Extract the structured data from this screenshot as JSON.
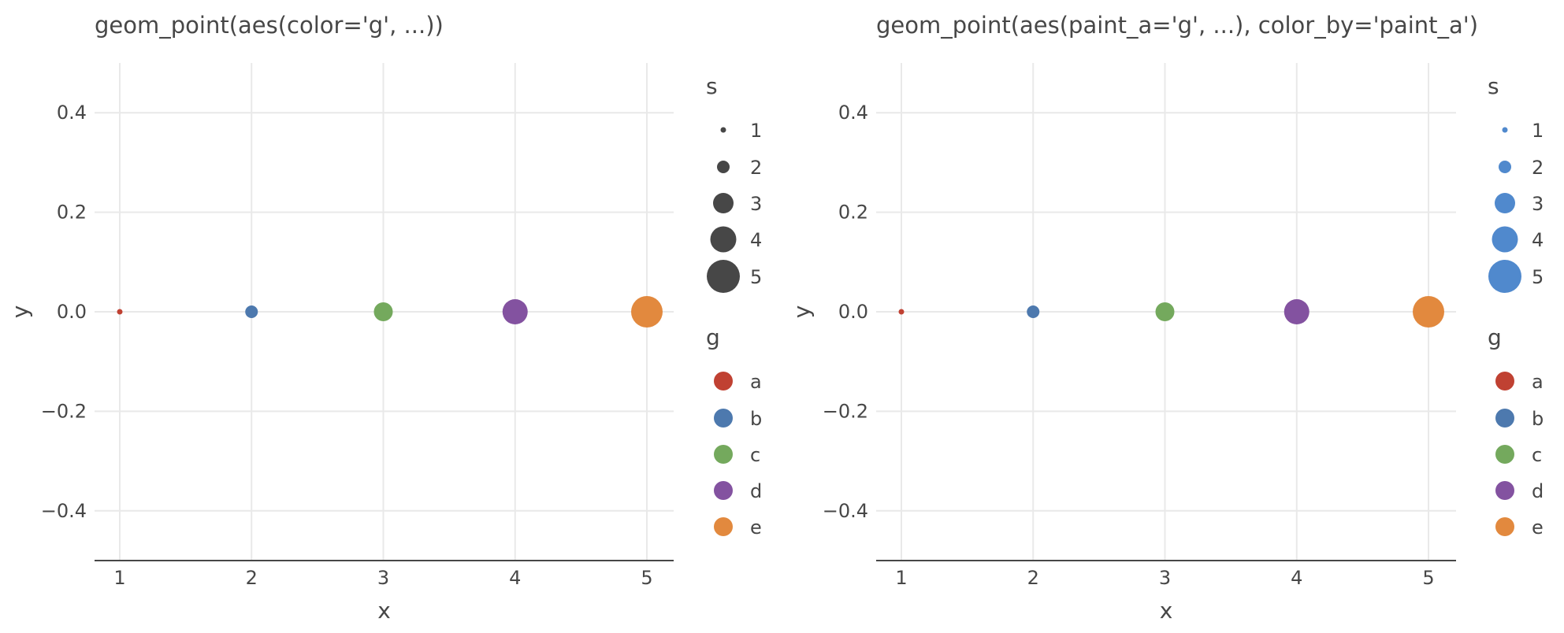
{
  "chart_data": [
    {
      "type": "scatter",
      "title": "geom_point(aes(color='g', ...))",
      "xlabel": "x",
      "ylabel": "y",
      "xlim": [
        0.8,
        5.2
      ],
      "ylim": [
        -0.5,
        0.5
      ],
      "x_ticks": [
        "1",
        "2",
        "3",
        "4",
        "5"
      ],
      "x_tick_values": [
        1,
        2,
        3,
        4,
        5
      ],
      "y_ticks": [
        "0.4",
        "0.2",
        "0.0",
        "−0.2",
        "−0.4"
      ],
      "y_tick_values": [
        0.4,
        0.2,
        0.0,
        -0.2,
        -0.4
      ],
      "grid": true,
      "points": [
        {
          "x": 1,
          "y": 0,
          "s": 1,
          "g": "a"
        },
        {
          "x": 2,
          "y": 0,
          "s": 2,
          "g": "b"
        },
        {
          "x": 3,
          "y": 0,
          "s": 3,
          "g": "c"
        },
        {
          "x": 4,
          "y": 0,
          "s": 4,
          "g": "d"
        },
        {
          "x": 5,
          "y": 0,
          "s": 5,
          "g": "e"
        }
      ],
      "legend_placement": "right",
      "size_legend": {
        "title": "s",
        "entries": [
          "1",
          "2",
          "3",
          "4",
          "5"
        ],
        "values": [
          1,
          2,
          3,
          4,
          5
        ],
        "color": "#474747"
      },
      "color_legend": {
        "title": "g",
        "entries": [
          "a",
          "b",
          "c",
          "d",
          "e"
        ]
      }
    },
    {
      "type": "scatter",
      "title": "geom_point(aes(paint_a='g', ...), color_by='paint_a')",
      "xlabel": "x",
      "ylabel": "y",
      "xlim": [
        0.8,
        5.2
      ],
      "ylim": [
        -0.5,
        0.5
      ],
      "x_ticks": [
        "1",
        "2",
        "3",
        "4",
        "5"
      ],
      "x_tick_values": [
        1,
        2,
        3,
        4,
        5
      ],
      "y_ticks": [
        "0.4",
        "0.2",
        "0.0",
        "−0.2",
        "−0.4"
      ],
      "y_tick_values": [
        0.4,
        0.2,
        0.0,
        -0.2,
        -0.4
      ],
      "grid": true,
      "points": [
        {
          "x": 1,
          "y": 0,
          "s": 1,
          "g": "a"
        },
        {
          "x": 2,
          "y": 0,
          "s": 2,
          "g": "b"
        },
        {
          "x": 3,
          "y": 0,
          "s": 3,
          "g": "c"
        },
        {
          "x": 4,
          "y": 0,
          "s": 4,
          "g": "d"
        },
        {
          "x": 5,
          "y": 0,
          "s": 5,
          "g": "e"
        }
      ],
      "legend_placement": "right",
      "size_legend": {
        "title": "s",
        "entries": [
          "1",
          "2",
          "3",
          "4",
          "5"
        ],
        "values": [
          1,
          2,
          3,
          4,
          5
        ],
        "color": "#5089cd"
      },
      "color_legend": {
        "title": "g",
        "entries": [
          "a",
          "b",
          "c",
          "d",
          "e"
        ]
      }
    }
  ],
  "colors": {
    "a": "#c04132",
    "b": "#4d79ae",
    "c": "#74a95d",
    "d": "#8352a0",
    "e": "#e2893e"
  }
}
